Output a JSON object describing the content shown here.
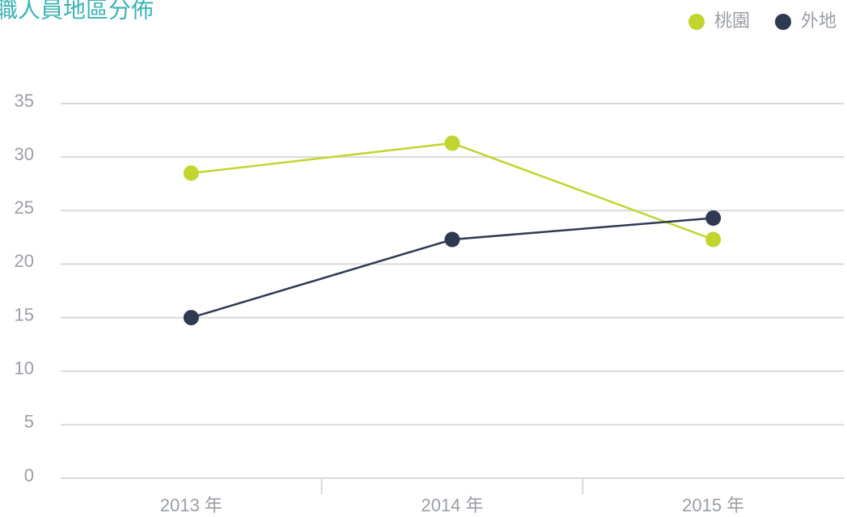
{
  "chart_data": {
    "type": "line",
    "title": "職人員地區分佈",
    "categories": [
      "2013 年",
      "2014 年",
      "2015 年"
    ],
    "series": [
      {
        "name": "桃園",
        "color": "#c2d52f",
        "values": [
          28.5,
          31.3,
          22.3
        ]
      },
      {
        "name": "外地",
        "color": "#2f3a52",
        "values": [
          15.0,
          22.3,
          24.3
        ]
      }
    ],
    "ylim": [
      0,
      35
    ],
    "yticks": [
      0,
      5,
      10,
      15,
      20,
      25,
      30,
      35
    ],
    "grid": true,
    "legend": "top-right"
  }
}
